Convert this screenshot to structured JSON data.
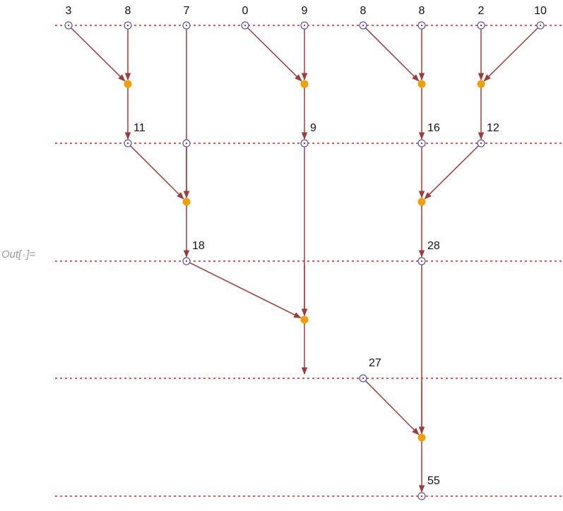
{
  "output_prefix": {
    "before": "Out[",
    "marker": "∘",
    "after": "]="
  },
  "colors": {
    "edge": "#a33a3a",
    "guide_line": "#dd2222",
    "register_ring": "#5a5ab0",
    "adder_fill": "#f0a000"
  },
  "levels": [
    {
      "inputs": [
        "3",
        "8",
        "7",
        "0",
        "9",
        "8",
        "8",
        "2",
        "10"
      ]
    },
    {
      "inputs": [
        "11",
        "7",
        "9",
        "16",
        "12"
      ]
    },
    {
      "inputs": [
        "18",
        "9",
        "28"
      ]
    },
    {
      "inputs": [
        "27",
        "28"
      ]
    },
    {
      "inputs": [
        "55"
      ]
    }
  ],
  "result": "55"
}
